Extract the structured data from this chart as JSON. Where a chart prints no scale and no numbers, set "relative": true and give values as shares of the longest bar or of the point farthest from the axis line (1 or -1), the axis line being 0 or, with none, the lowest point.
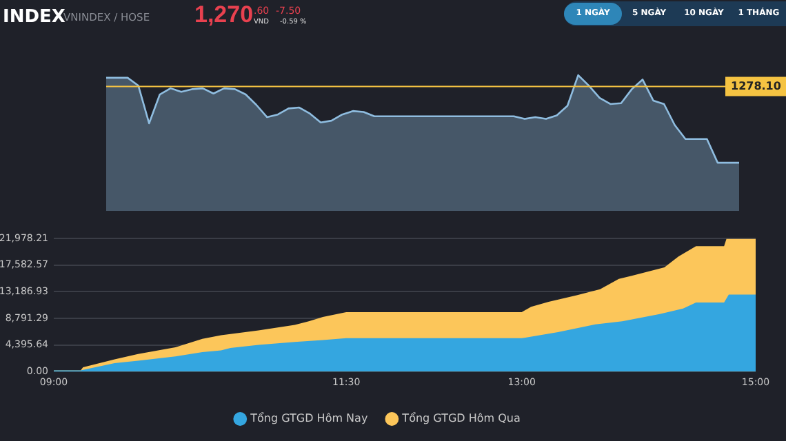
{
  "chart_data": [
    {
      "type": "area",
      "title": "INDEX",
      "subtitle": "VNINDEX / HOSE",
      "annotations": [
        "1,270",
        ".60",
        "VND",
        "-7.50",
        "-0.59 %",
        "1 NGÀY",
        "5 NGÀY",
        "10 NGÀY",
        "1 THÁNG",
        "1278.10"
      ],
      "relative": true,
      "categories": [
        null,
        null,
        null,
        null,
        null,
        null,
        null,
        null,
        null,
        null,
        null,
        null,
        null,
        null,
        null,
        null,
        null,
        null,
        null,
        null,
        null,
        null,
        null,
        null,
        null,
        null,
        null,
        null,
        null,
        null,
        null,
        null,
        null,
        null,
        null,
        null,
        null,
        null,
        null,
        null,
        null,
        null,
        null,
        null,
        null,
        null,
        null,
        null,
        null,
        null,
        null,
        null,
        null,
        null,
        null,
        null,
        null,
        null,
        null,
        null
      ],
      "series": [
        {
          "color": "#8fbde0",
          "values": [
            0.97,
            0.97,
            0.97,
            0.88,
            0.45,
            0.78,
            0.85,
            0.81,
            0.84,
            0.85,
            0.79,
            0.85,
            0.84,
            0.78,
            0.66,
            0.52,
            0.55,
            0.62,
            0.63,
            0.56,
            0.46,
            0.48,
            0.55,
            0.59,
            0.58,
            0.53,
            0.53,
            0.53,
            0.53,
            0.53,
            0.53,
            0.53,
            0.53,
            0.53,
            0.53,
            0.53,
            0.53,
            0.53,
            0.53,
            0.5,
            0.52,
            0.5,
            0.54,
            0.65,
            1,
            0.88,
            0.74,
            0.67,
            0.68,
            0.84,
            0.95,
            0.71,
            0.67,
            0.43,
            0.27,
            0.27,
            0.27,
            0,
            0,
            0
          ]
        }
      ],
      "legend": false,
      "marker": "none",
      "ref_lines": [
        {
          "axis": "y",
          "value": 0.87,
          "color": "#f5c342"
        }
      ]
    },
    {
      "type": "area",
      "series": [
        {
          "name": "Tổng GTGD Hôm Nay",
          "color": "#34a6e0",
          "x": [
            9.0,
            9.23,
            9.52,
            9.72,
            10.04,
            10.27,
            10.43,
            10.51,
            10.75,
            11.06,
            11.3,
            11.5,
            13.0,
            13.31,
            13.63,
            13.86,
            14.18,
            14.38,
            14.49,
            14.73,
            14.77,
            15.0
          ],
          "values": [
            200,
            200,
            1400,
            1800,
            2500,
            3200,
            3500,
            3900,
            4400,
            4900,
            5200,
            5500,
            5500,
            6500,
            7800,
            8300,
            9500,
            10400,
            11400,
            11400,
            12700,
            12700
          ]
        },
        {
          "name": "Tổng GTGD Hôm Qua",
          "color": "#fcc65a",
          "x": [
            9.0,
            9.23,
            9.25,
            9.52,
            9.72,
            10.04,
            10.12,
            10.27,
            10.43,
            10.75,
            11.06,
            11.18,
            11.3,
            11.5,
            13.0,
            13.08,
            13.23,
            13.47,
            13.67,
            13.83,
            13.94,
            14.22,
            14.34,
            14.49,
            14.73,
            14.75,
            15.0
          ],
          "values": [
            200,
            200,
            700,
            2000,
            2900,
            4000,
            4500,
            5400,
            6000,
            6800,
            7700,
            8300,
            9000,
            9800,
            9800,
            10700,
            11500,
            12600,
            13600,
            15300,
            15800,
            17200,
            19000,
            20700,
            20700,
            21900,
            21900
          ]
        }
      ],
      "xlim": [
        9,
        15
      ],
      "xticks": [
        {
          "value": 9,
          "label": "09:00"
        },
        {
          "value": 11.5,
          "label": "11:30"
        },
        {
          "value": 13,
          "label": "13:00"
        },
        {
          "value": 15,
          "label": "15:00"
        }
      ],
      "ylim": [
        0,
        21978.21
      ],
      "yticks": [
        {
          "value": 0,
          "label": "0.00"
        },
        {
          "value": 4395.64,
          "label": "4,395.64"
        },
        {
          "value": 8791.29,
          "label": "8,791.29"
        },
        {
          "value": 13186.93,
          "label": "13,186.93"
        },
        {
          "value": 17582.57,
          "label": "17,582.57"
        },
        {
          "value": 21978.21,
          "label": "21,978.21"
        }
      ],
      "grid": "y",
      "legend": "bottom",
      "marker": "none"
    }
  ]
}
